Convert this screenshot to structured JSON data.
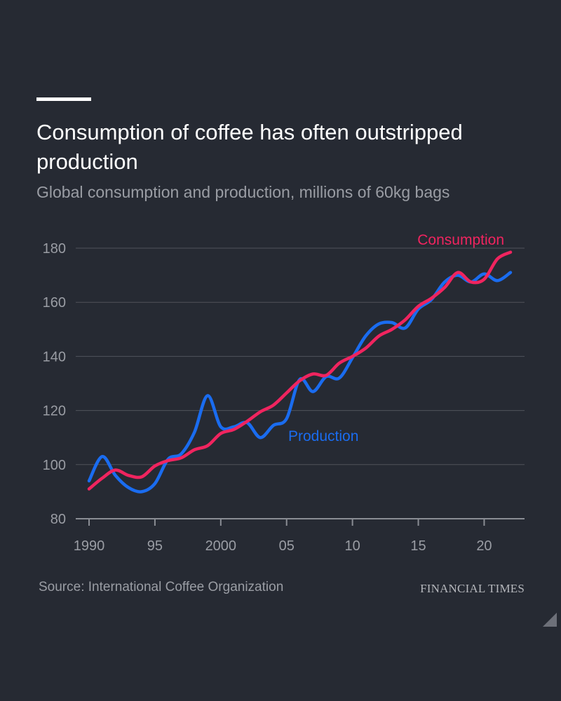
{
  "header": {
    "title": "Consumption of coffee has often outstripped production",
    "subtitle": "Global consumption and production, millions of 60kg bags"
  },
  "footer": {
    "source": "Source: International Coffee Organization",
    "brand": "FINANCIAL TIMES"
  },
  "colors": {
    "background": "#262a33",
    "consumption": "#f0245f",
    "production": "#1a6cf0",
    "grid": "#50535b",
    "axis_text": "#9a9da4"
  },
  "chart_data": {
    "type": "line",
    "title": "Consumption of coffee has often outstripped production",
    "subtitle": "Global consumption and production, millions of 60kg bags",
    "xlabel": "",
    "ylabel": "",
    "x": [
      1990,
      1991,
      1992,
      1993,
      1994,
      1995,
      1996,
      1997,
      1998,
      1999,
      2000,
      2001,
      2002,
      2003,
      2004,
      2005,
      2006,
      2007,
      2008,
      2009,
      2010,
      2011,
      2012,
      2013,
      2014,
      2015,
      2016,
      2017,
      2018,
      2019,
      2020,
      2021,
      2022
    ],
    "xlim": [
      1990,
      2022
    ],
    "ylim": [
      80,
      180
    ],
    "yticks": [
      80,
      100,
      120,
      140,
      160,
      180
    ],
    "xticks": [
      {
        "value": 1990,
        "label": "1990"
      },
      {
        "value": 1995,
        "label": "95"
      },
      {
        "value": 2000,
        "label": "2000"
      },
      {
        "value": 2005,
        "label": "05"
      },
      {
        "value": 2010,
        "label": "10"
      },
      {
        "value": 2015,
        "label": "15"
      },
      {
        "value": 2020,
        "label": "20"
      }
    ],
    "grid": true,
    "series": [
      {
        "name": "Consumption",
        "color": "#f0245f",
        "values": [
          91,
          95,
          98,
          96,
          95.5,
          99.5,
          101.5,
          102.5,
          105.5,
          107,
          111.5,
          113,
          116,
          119.5,
          122,
          126.5,
          131,
          133.5,
          133,
          137.5,
          140,
          143,
          147.5,
          150,
          153.5,
          158.5,
          161.5,
          165.5,
          171,
          167.5,
          168.5,
          176,
          178.5
        ]
      },
      {
        "name": "Production",
        "color": "#1a6cf0",
        "values": [
          94,
          103,
          96,
          91.5,
          90,
          93,
          102,
          104,
          112,
          125.5,
          114,
          114,
          115.5,
          110,
          114.5,
          117,
          131.5,
          127,
          132.5,
          132,
          139.5,
          147.5,
          152,
          152.5,
          150.5,
          157.5,
          161,
          167.5,
          170,
          167.5,
          170.5,
          168,
          171
        ]
      }
    ]
  }
}
